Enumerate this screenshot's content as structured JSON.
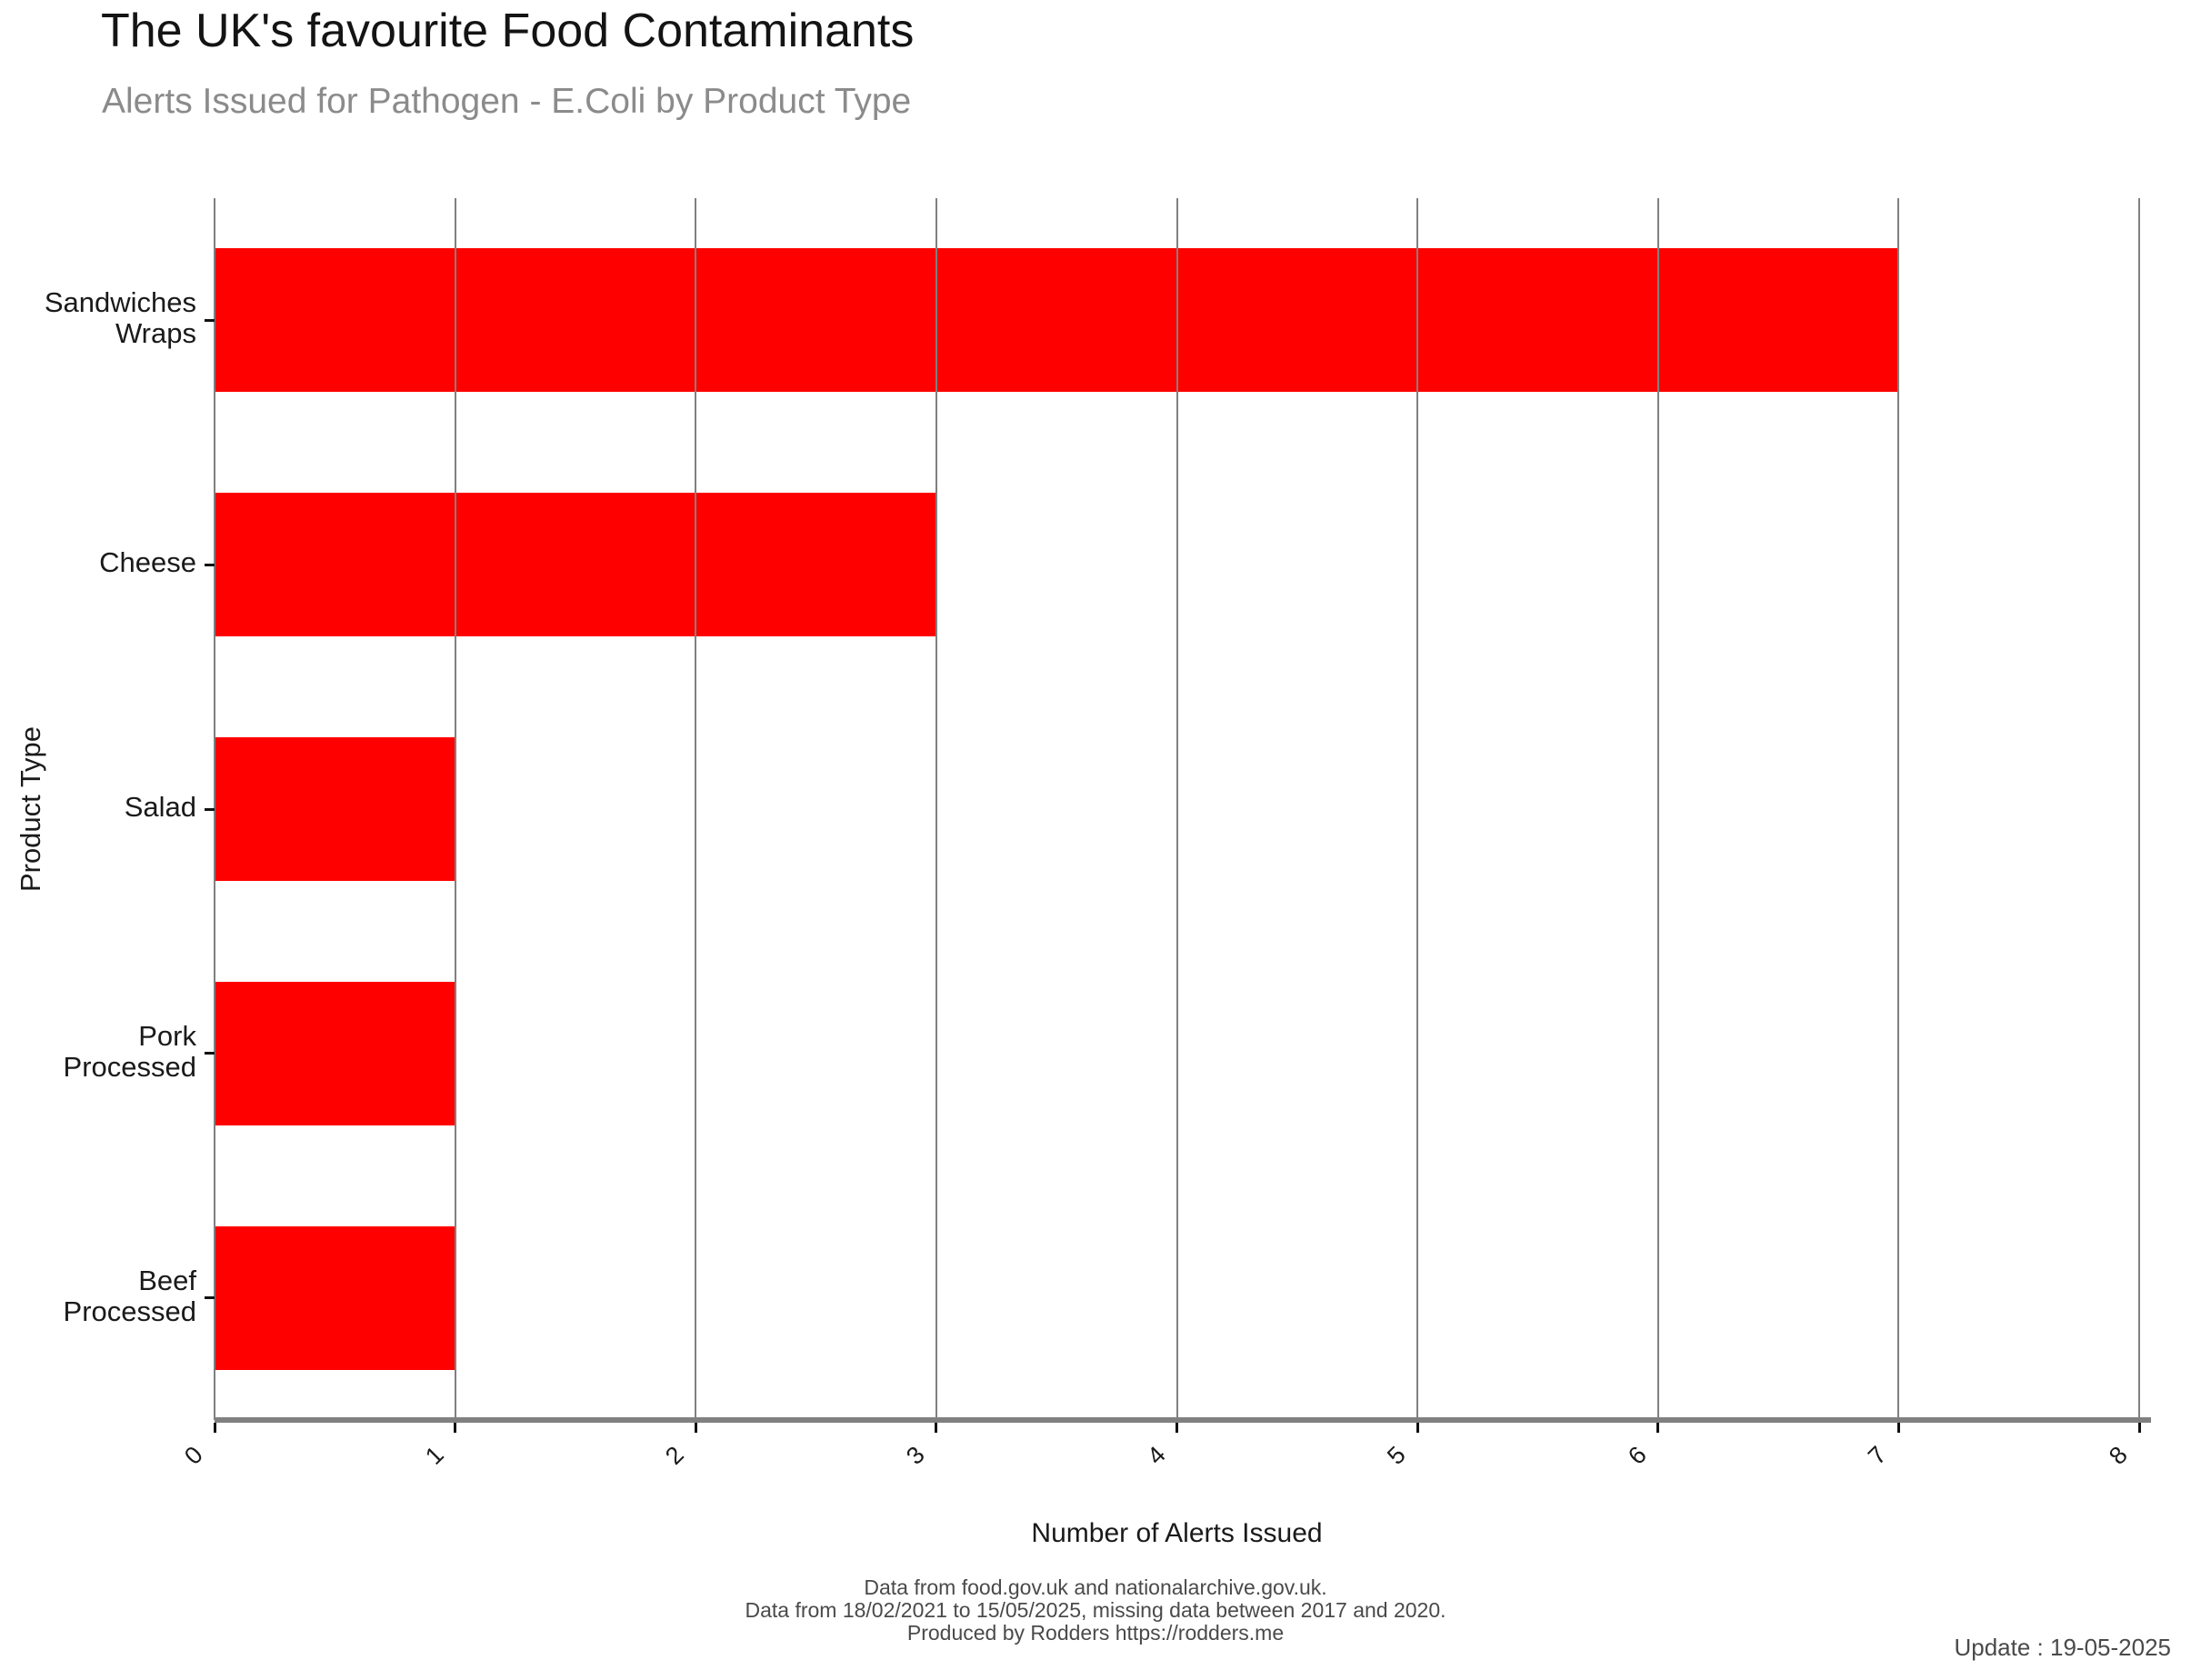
{
  "title": "The UK's favourite Food Contaminants",
  "subtitle": "Alerts Issued for Pathogen - E.Coli by Product Type",
  "chart_data": {
    "type": "bar",
    "orientation": "horizontal",
    "title": "The UK's favourite Food Contaminants",
    "subtitle": "Alerts Issued for Pathogen - E.Coli by Product Type",
    "categories": [
      "Sandwiches Wraps",
      "Cheese",
      "Salad",
      "Pork Processed",
      "Beef Processed"
    ],
    "category_label_lines": [
      [
        "Sandwiches",
        "Wraps"
      ],
      [
        "Cheese"
      ],
      [
        "Salad"
      ],
      [
        "Pork",
        "Processed"
      ],
      [
        "Beef",
        "Processed"
      ]
    ],
    "values": [
      7,
      3,
      1,
      1,
      1
    ],
    "xlabel": "Number of Alerts Issued",
    "ylabel": "Product Type",
    "xlim": [
      0,
      8
    ],
    "xticks": [
      "0",
      "1",
      "2",
      "3",
      "4",
      "5",
      "6",
      "7",
      "8"
    ],
    "x_tick_label_rotation_deg": -45,
    "bar_color": "#ff0000",
    "gridline_color": "#808080",
    "axis_line_color": "#808080",
    "grid": true,
    "legend": "none"
  },
  "footer": {
    "line1": "Data from food.gov.uk and nationalarchive.gov.uk.",
    "line2": "Data from 18/02/2021 to 15/05/2025, missing data between 2017 and 2020.",
    "line3": "Produced by Rodders https://rodders.me",
    "update": "Update : 19-05-2025"
  },
  "colors": {
    "title": "#141414",
    "subtitle": "#8b8b8b",
    "tick_text": "#1a1a1a",
    "footer_text": "#4a4a4a"
  }
}
